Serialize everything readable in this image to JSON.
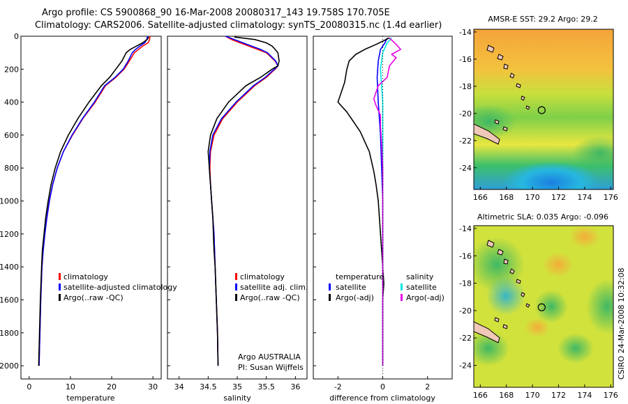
{
  "title": {
    "line1": "Argo profile: CS 5900868_90 16-Mar-2008 20080317_143 19.758S 170.705E",
    "line2": "Climatology: CARS2006. Satellite-adjusted climatology: synTS_20080315.nc (1.4d earlier)"
  },
  "credit": {
    "side": "CSIRO 24-Mar-2008 10:32:08",
    "argo_line1": "Argo AUSTRALIA",
    "argo_line2": "PI: Susan Wijffels"
  },
  "colors": {
    "climatology": "#ff0000",
    "satellite": "#0000ff",
    "argo": "#000000",
    "sal_satellite": "#00e5e5",
    "sal_argo": "#e600e6"
  },
  "chart_data": [
    {
      "type": "line",
      "id": "temperature",
      "xlabel": "temperature",
      "ylabel": "",
      "xlim": [
        -2,
        32
      ],
      "ylim": [
        2080,
        0
      ],
      "xticks": [
        0,
        10,
        20,
        30
      ],
      "yticks": [
        0,
        200,
        400,
        600,
        800,
        1000,
        1200,
        1400,
        1600,
        1800,
        2000
      ],
      "legend": [
        {
          "label": "climatology",
          "color": "#ff0000"
        },
        {
          "label": "satellite-adjusted climatology",
          "color": "#0000ff"
        },
        {
          "label": "Argo(..raw -QC)",
          "color": "#000000"
        }
      ],
      "series": [
        {
          "name": "climatology",
          "color": "#ff0000",
          "points": [
            [
              29.3,
              0
            ],
            [
              29.2,
              20
            ],
            [
              28.8,
              40
            ],
            [
              27.5,
              60
            ],
            [
              26.5,
              80
            ],
            [
              25.5,
              100
            ],
            [
              24.3,
              150
            ],
            [
              23.0,
              200
            ],
            [
              21.0,
              250
            ],
            [
              18.5,
              300
            ],
            [
              16.0,
              400
            ],
            [
              13.0,
              500
            ],
            [
              10.5,
              600
            ],
            [
              8.3,
              700
            ],
            [
              6.8,
              800
            ],
            [
              5.7,
              900
            ],
            [
              4.9,
              1000
            ],
            [
              4.3,
              1100
            ],
            [
              3.8,
              1200
            ],
            [
              3.4,
              1300
            ],
            [
              3.1,
              1400
            ],
            [
              2.8,
              1600
            ],
            [
              2.6,
              1800
            ],
            [
              2.4,
              2000
            ]
          ]
        },
        {
          "name": "satellite-adjusted climatology",
          "color": "#0000ff",
          "points": [
            [
              28.7,
              0
            ],
            [
              28.5,
              20
            ],
            [
              28.0,
              40
            ],
            [
              26.8,
              60
            ],
            [
              25.8,
              80
            ],
            [
              25.0,
              100
            ],
            [
              24.0,
              150
            ],
            [
              22.8,
              200
            ],
            [
              20.8,
              250
            ],
            [
              18.3,
              300
            ],
            [
              15.8,
              400
            ],
            [
              12.9,
              500
            ],
            [
              10.4,
              600
            ],
            [
              8.3,
              700
            ],
            [
              6.8,
              800
            ],
            [
              5.7,
              900
            ],
            [
              4.9,
              1000
            ],
            [
              4.3,
              1100
            ],
            [
              3.8,
              1200
            ],
            [
              3.4,
              1300
            ],
            [
              3.1,
              1400
            ],
            [
              2.8,
              1600
            ],
            [
              2.6,
              1800
            ],
            [
              2.4,
              2000
            ]
          ]
        },
        {
          "name": "Argo(..raw -QC)",
          "color": "#000000",
          "points": [
            [
              29.0,
              5
            ],
            [
              28.6,
              20
            ],
            [
              27.5,
              40
            ],
            [
              26.0,
              60
            ],
            [
              24.5,
              80
            ],
            [
              23.5,
              100
            ],
            [
              22.5,
              150
            ],
            [
              21.0,
              200
            ],
            [
              19.5,
              250
            ],
            [
              17.5,
              300
            ],
            [
              14.5,
              400
            ],
            [
              11.8,
              500
            ],
            [
              9.5,
              600
            ],
            [
              7.6,
              700
            ],
            [
              6.3,
              800
            ],
            [
              5.3,
              900
            ],
            [
              4.6,
              1000
            ],
            [
              4.0,
              1100
            ],
            [
              3.6,
              1200
            ],
            [
              3.2,
              1300
            ],
            [
              3.0,
              1400
            ],
            [
              2.7,
              1600
            ],
            [
              2.5,
              1800
            ],
            [
              2.3,
              2000
            ]
          ]
        }
      ]
    },
    {
      "type": "line",
      "id": "salinity",
      "xlabel": "salinity",
      "ylabel": "",
      "xlim": [
        33.8,
        36.2
      ],
      "ylim": [
        2080,
        0
      ],
      "xticks": [
        34,
        34.5,
        35,
        35.5,
        36
      ],
      "legend": [
        {
          "label": "climatology",
          "color": "#ff0000"
        },
        {
          "label": "satellite adj. clim.",
          "color": "#0000ff"
        },
        {
          "label": "Argo(..raw -QC)",
          "color": "#000000"
        }
      ],
      "series": [
        {
          "name": "climatology",
          "color": "#ff0000",
          "points": [
            [
              34.8,
              0
            ],
            [
              34.9,
              20
            ],
            [
              35.05,
              40
            ],
            [
              35.2,
              60
            ],
            [
              35.35,
              80
            ],
            [
              35.5,
              100
            ],
            [
              35.65,
              150
            ],
            [
              35.7,
              180
            ],
            [
              35.65,
              200
            ],
            [
              35.5,
              250
            ],
            [
              35.3,
              300
            ],
            [
              35.0,
              400
            ],
            [
              34.75,
              500
            ],
            [
              34.6,
              600
            ],
            [
              34.54,
              700
            ],
            [
              34.53,
              800
            ],
            [
              34.54,
              900
            ],
            [
              34.56,
              1000
            ],
            [
              34.58,
              1100
            ],
            [
              34.6,
              1200
            ],
            [
              34.61,
              1300
            ],
            [
              34.62,
              1400
            ],
            [
              34.64,
              1600
            ],
            [
              34.66,
              1800
            ],
            [
              34.67,
              2000
            ]
          ]
        },
        {
          "name": "satellite adj. clim.",
          "color": "#0000ff",
          "points": [
            [
              34.8,
              0
            ],
            [
              34.95,
              20
            ],
            [
              35.1,
              40
            ],
            [
              35.25,
              60
            ],
            [
              35.4,
              80
            ],
            [
              35.52,
              100
            ],
            [
              35.66,
              150
            ],
            [
              35.7,
              180
            ],
            [
              35.64,
              200
            ],
            [
              35.48,
              250
            ],
            [
              35.28,
              300
            ],
            [
              34.98,
              400
            ],
            [
              34.73,
              500
            ],
            [
              34.58,
              600
            ],
            [
              34.53,
              700
            ],
            [
              34.52,
              800
            ],
            [
              34.54,
              900
            ],
            [
              34.56,
              1000
            ],
            [
              34.58,
              1100
            ],
            [
              34.6,
              1200
            ],
            [
              34.61,
              1300
            ],
            [
              34.62,
              1400
            ],
            [
              34.64,
              1600
            ],
            [
              34.66,
              1800
            ],
            [
              34.67,
              2000
            ]
          ]
        },
        {
          "name": "Argo(..raw -QC)",
          "color": "#000000",
          "points": [
            [
              34.95,
              5
            ],
            [
              35.3,
              20
            ],
            [
              35.5,
              40
            ],
            [
              35.6,
              60
            ],
            [
              35.65,
              80
            ],
            [
              35.7,
              100
            ],
            [
              35.72,
              150
            ],
            [
              35.7,
              180
            ],
            [
              35.6,
              200
            ],
            [
              35.4,
              250
            ],
            [
              35.15,
              300
            ],
            [
              34.85,
              400
            ],
            [
              34.65,
              500
            ],
            [
              34.54,
              600
            ],
            [
              34.5,
              700
            ],
            [
              34.52,
              800
            ],
            [
              34.54,
              900
            ],
            [
              34.56,
              1000
            ],
            [
              34.58,
              1100
            ],
            [
              34.59,
              1200
            ],
            [
              34.6,
              1300
            ],
            [
              34.62,
              1400
            ],
            [
              34.64,
              1600
            ],
            [
              34.66,
              1800
            ],
            [
              34.67,
              2000
            ]
          ]
        }
      ]
    },
    {
      "type": "line",
      "id": "difference",
      "xlabel": "difference from climatology",
      "ylabel": "",
      "xlim": [
        -3.1,
        3.1
      ],
      "ylim": [
        2080,
        0
      ],
      "xticks": [
        -2,
        0,
        2
      ],
      "legend_temperature_heading": "temperature",
      "legend_salinity_heading": "salinity",
      "legend": [
        {
          "label": "satellite",
          "color": "#0000ff",
          "group": "temperature"
        },
        {
          "label": "Argo(-adj)",
          "color": "#000000",
          "group": "temperature"
        },
        {
          "label": "satellite",
          "color": "#00e5e5",
          "group": "salinity"
        },
        {
          "label": "Argo(-adj)",
          "color": "#e600e6",
          "group": "salinity"
        }
      ],
      "series": [
        {
          "name": "temperature satellite",
          "color": "#0000ff",
          "points": [
            [
              0.2,
              10
            ],
            [
              0.1,
              40
            ],
            [
              -0.1,
              80
            ],
            [
              -0.2,
              150
            ],
            [
              -0.25,
              250
            ],
            [
              -0.2,
              400
            ],
            [
              -0.1,
              600
            ],
            [
              -0.05,
              800
            ],
            [
              0,
              1000
            ],
            [
              0,
              1500
            ],
            [
              0,
              2000
            ]
          ]
        },
        {
          "name": "temperature Argo(-adj)",
          "color": "#000000",
          "points": [
            [
              0.3,
              10
            ],
            [
              0,
              30
            ],
            [
              -0.3,
              50
            ],
            [
              -0.8,
              80
            ],
            [
              -1.2,
              110
            ],
            [
              -1.5,
              150
            ],
            [
              -1.6,
              200
            ],
            [
              -1.7,
              280
            ],
            [
              -1.9,
              360
            ],
            [
              -2.0,
              400
            ],
            [
              -1.6,
              460
            ],
            [
              -1.3,
              520
            ],
            [
              -1.0,
              580
            ],
            [
              -0.8,
              640
            ],
            [
              -0.6,
              700
            ],
            [
              -0.5,
              760
            ],
            [
              -0.4,
              820
            ],
            [
              -0.3,
              900
            ],
            [
              -0.2,
              1000
            ],
            [
              -0.15,
              1100
            ],
            [
              -0.1,
              1200
            ],
            [
              -0.05,
              1300
            ],
            [
              0,
              1400
            ],
            [
              0.05,
              1500
            ],
            [
              0,
              1600
            ],
            [
              0,
              2000
            ]
          ]
        },
        {
          "name": "salinity satellite",
          "color": "#00e5e5",
          "points": [
            [
              0.4,
              10
            ],
            [
              0.2,
              40
            ],
            [
              0,
              100
            ],
            [
              -0.1,
              200
            ],
            [
              -0.05,
              300
            ],
            [
              0,
              400
            ],
            [
              0,
              600
            ],
            [
              0,
              1000
            ],
            [
              0,
              1500
            ],
            [
              0,
              2000
            ]
          ]
        },
        {
          "name": "salinity Argo(-adj)",
          "color": "#e600e6",
          "points": [
            [
              0.3,
              10
            ],
            [
              0.6,
              50
            ],
            [
              0.8,
              80
            ],
            [
              0.4,
              110
            ],
            [
              0.6,
              130
            ],
            [
              0.3,
              180
            ],
            [
              0.2,
              250
            ],
            [
              -0.2,
              300
            ],
            [
              -0.4,
              380
            ],
            [
              -0.3,
              420
            ],
            [
              -0.1,
              480
            ],
            [
              -0.1,
              550
            ],
            [
              -0.05,
              650
            ],
            [
              0,
              800
            ],
            [
              0,
              1000
            ],
            [
              0,
              2000
            ]
          ]
        }
      ]
    },
    {
      "type": "heatmap",
      "id": "sst-map",
      "title": "AMSR-E SST: 29.2 Argo: 29.2",
      "xlim": [
        165.5,
        176.2
      ],
      "ylim": [
        -25.6,
        -13.8
      ],
      "xticks": [
        166,
        168,
        170,
        172,
        174,
        176
      ],
      "yticks": [
        -14,
        -16,
        -18,
        -20,
        -22,
        -24
      ],
      "marker": {
        "lon": 170.705,
        "lat": -19.758
      }
    },
    {
      "type": "heatmap",
      "id": "sla-map",
      "title": "Altimetric SLA: 0.035 Argo: -0.096",
      "xlim": [
        165.5,
        176.2
      ],
      "ylim": [
        -25.6,
        -13.8
      ],
      "xticks": [
        166,
        168,
        170,
        172,
        174,
        176
      ],
      "yticks": [
        -14,
        -16,
        -18,
        -20,
        -22,
        -24
      ],
      "marker": {
        "lon": 170.705,
        "lat": -19.758
      }
    }
  ]
}
